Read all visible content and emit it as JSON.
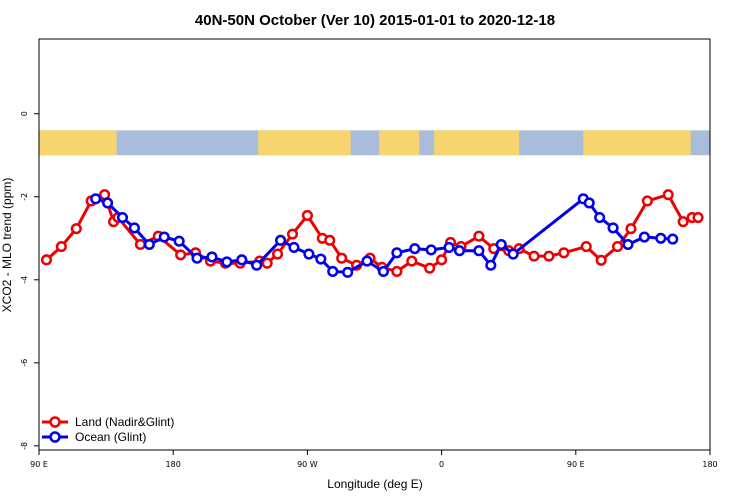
{
  "chart_data": {
    "type": "line",
    "title": "40N-50N October (Ver 10)   2015-01-01 to 2020-12-18",
    "xlabel": "Longitude (deg E)",
    "ylabel": "XCO2 - MLO trend (ppm)",
    "xlim": [
      90,
      540
    ],
    "ylim": [
      -8.1,
      1.8
    ],
    "x_ticks": [
      {
        "value": 90,
        "label": "90 E"
      },
      {
        "value": 180,
        "label": "180"
      },
      {
        "value": 270,
        "label": "90 W"
      },
      {
        "value": 360,
        "label": "0"
      },
      {
        "value": 450,
        "label": "90 E"
      },
      {
        "value": 540,
        "label": "180"
      }
    ],
    "y_ticks": [
      {
        "value": 0,
        "label": "0"
      },
      {
        "value": -2,
        "label": "-2"
      },
      {
        "value": -4,
        "label": "-4"
      },
      {
        "value": -6,
        "label": "-6"
      },
      {
        "value": -8,
        "label": "-8"
      }
    ],
    "grid": false,
    "legend_position": "bottom-left",
    "map_strip": {
      "y_range": [
        -1.0,
        -0.4
      ],
      "land_color": "#f7d56e",
      "ocean_color": "#a9bddb",
      "land_segments": [
        [
          90,
          142
        ],
        [
          237,
          299
        ],
        [
          318,
          345
        ],
        [
          355,
          412
        ],
        [
          455,
          527
        ]
      ]
    },
    "series": [
      {
        "name": "Land (Nadir&Glint)",
        "color": "#ee0000",
        "x": [
          95,
          105,
          115,
          125,
          134,
          140,
          143,
          158,
          170,
          185,
          195,
          205,
          215,
          225,
          238,
          243,
          250,
          260,
          270,
          280,
          285,
          293,
          303,
          312,
          320,
          330,
          340,
          352,
          360,
          366,
          373,
          385,
          395,
          405,
          412,
          422,
          432,
          442,
          457,
          467,
          478,
          487,
          498,
          512,
          522,
          528,
          532
        ],
        "y": [
          -3.52,
          -3.2,
          -2.77,
          -2.1,
          -1.95,
          -2.6,
          -2.5,
          -3.15,
          -2.95,
          -3.4,
          -3.35,
          -3.55,
          -3.6,
          -3.6,
          -3.55,
          -3.6,
          -3.38,
          -2.9,
          -2.45,
          -3.0,
          -3.05,
          -3.48,
          -3.65,
          -3.48,
          -3.7,
          -3.8,
          -3.55,
          -3.72,
          -3.52,
          -3.1,
          -3.2,
          -2.95,
          -3.25,
          -3.3,
          -3.25,
          -3.43,
          -3.43,
          -3.35,
          -3.2,
          -3.53,
          -3.2,
          -2.77,
          -2.1,
          -1.95,
          -2.6,
          -2.5,
          -2.5
        ]
      },
      {
        "name": "Ocean (Glint)",
        "color": "#0000ee",
        "x": [
          128,
          136,
          146,
          154,
          164,
          174,
          184,
          196,
          206,
          216,
          226,
          236,
          252,
          261,
          271,
          279,
          287,
          297,
          310,
          321,
          330,
          342,
          353,
          365,
          372,
          385,
          393,
          400,
          408,
          455,
          459,
          466,
          475,
          485,
          496,
          507,
          515
        ],
        "y": [
          -2.05,
          -2.15,
          -2.5,
          -2.75,
          -3.15,
          -2.97,
          -3.07,
          -3.48,
          -3.45,
          -3.57,
          -3.52,
          -3.65,
          -3.05,
          -3.22,
          -3.38,
          -3.5,
          -3.8,
          -3.82,
          -3.55,
          -3.8,
          -3.35,
          -3.25,
          -3.28,
          -3.22,
          -3.3,
          -3.3,
          -3.65,
          -3.15,
          -3.38,
          -2.05,
          -2.15,
          -2.5,
          -2.75,
          -3.15,
          -2.97,
          -3.0,
          -3.02
        ]
      }
    ]
  }
}
